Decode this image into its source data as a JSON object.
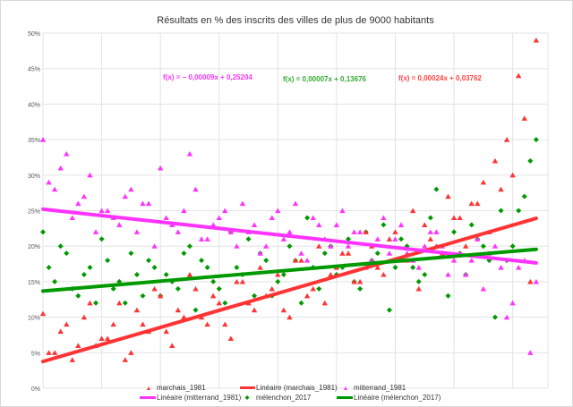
{
  "chart_data": {
    "type": "scatter",
    "title": "Résultats en % des inscrits des villes de plus de 9000 habitants",
    "xlabel": "",
    "ylabel": "",
    "xlim": [
      0,
      860
    ],
    "ylim": [
      0,
      50
    ],
    "y_ticks": [
      "0%",
      "5%",
      "10%",
      "15%",
      "20%",
      "25%",
      "30%",
      "35%",
      "40%",
      "45%",
      "50%"
    ],
    "grid": true,
    "legend_position": "bottom",
    "series": [
      {
        "name": "marchais_1981",
        "color": "#ff3333",
        "marker": "triangle",
        "points": [
          [
            0,
            10.5
          ],
          [
            20,
            5
          ],
          [
            40,
            9
          ],
          [
            60,
            6
          ],
          [
            80,
            12
          ],
          [
            100,
            7
          ],
          [
            120,
            9
          ],
          [
            140,
            4
          ],
          [
            160,
            11
          ],
          [
            180,
            8
          ],
          [
            200,
            13
          ],
          [
            220,
            6
          ],
          [
            240,
            10
          ],
          [
            260,
            14
          ],
          [
            280,
            9
          ],
          [
            300,
            12
          ],
          [
            320,
            7
          ],
          [
            340,
            15
          ],
          [
            360,
            11
          ],
          [
            380,
            13
          ],
          [
            400,
            16
          ],
          [
            420,
            10
          ],
          [
            440,
            18
          ],
          [
            460,
            14
          ],
          [
            480,
            12
          ],
          [
            500,
            17
          ],
          [
            520,
            19
          ],
          [
            540,
            15
          ],
          [
            560,
            20
          ],
          [
            580,
            16
          ],
          [
            600,
            22
          ],
          [
            620,
            18
          ],
          [
            640,
            14
          ],
          [
            660,
            21
          ],
          [
            680,
            19
          ],
          [
            700,
            24
          ],
          [
            720,
            20
          ],
          [
            740,
            26
          ],
          [
            760,
            22
          ],
          [
            780,
            28
          ],
          [
            800,
            30
          ],
          [
            820,
            38
          ],
          [
            840,
            49
          ],
          [
            10,
            5
          ],
          [
            30,
            8
          ],
          [
            50,
            4
          ],
          [
            70,
            10
          ],
          [
            90,
            6
          ],
          [
            110,
            7
          ],
          [
            130,
            12
          ],
          [
            150,
            5
          ],
          [
            170,
            9
          ],
          [
            190,
            14
          ],
          [
            210,
            8
          ],
          [
            230,
            11
          ],
          [
            250,
            16
          ],
          [
            270,
            10
          ],
          [
            290,
            13
          ],
          [
            310,
            9
          ],
          [
            330,
            15
          ],
          [
            350,
            12
          ],
          [
            370,
            17
          ],
          [
            390,
            14
          ],
          [
            410,
            11
          ],
          [
            430,
            18
          ],
          [
            450,
            13
          ],
          [
            470,
            20
          ],
          [
            490,
            16
          ],
          [
            510,
            19
          ],
          [
            530,
            15
          ],
          [
            550,
            22
          ],
          [
            570,
            17
          ],
          [
            590,
            21
          ],
          [
            610,
            18
          ],
          [
            630,
            25
          ],
          [
            650,
            23
          ],
          [
            670,
            20
          ],
          [
            690,
            27
          ],
          [
            710,
            24
          ],
          [
            730,
            26
          ],
          [
            750,
            29
          ],
          [
            770,
            32
          ],
          [
            790,
            35
          ],
          [
            810,
            44
          ],
          [
            830,
            15
          ]
        ]
      },
      {
        "name": "mitterrand_1981",
        "color": "#ff33ff",
        "marker": "triangle",
        "points": [
          [
            0,
            35
          ],
          [
            20,
            28
          ],
          [
            40,
            33
          ],
          [
            60,
            26
          ],
          [
            80,
            30
          ],
          [
            100,
            25
          ],
          [
            120,
            24
          ],
          [
            140,
            27
          ],
          [
            160,
            22
          ],
          [
            180,
            26
          ],
          [
            200,
            31
          ],
          [
            220,
            23
          ],
          [
            240,
            25
          ],
          [
            260,
            28
          ],
          [
            280,
            21
          ],
          [
            300,
            24
          ],
          [
            320,
            22
          ],
          [
            340,
            26
          ],
          [
            360,
            23
          ],
          [
            380,
            20
          ],
          [
            400,
            25
          ],
          [
            420,
            22
          ],
          [
            440,
            19
          ],
          [
            460,
            24
          ],
          [
            480,
            21
          ],
          [
            500,
            23
          ],
          [
            520,
            20
          ],
          [
            540,
            22
          ],
          [
            560,
            18
          ],
          [
            580,
            24
          ],
          [
            600,
            21
          ],
          [
            620,
            19
          ],
          [
            640,
            17
          ],
          [
            660,
            22
          ],
          [
            680,
            20
          ],
          [
            700,
            18
          ],
          [
            720,
            16
          ],
          [
            740,
            21
          ],
          [
            760,
            19
          ],
          [
            780,
            17
          ],
          [
            800,
            12
          ],
          [
            820,
            18
          ],
          [
            840,
            15
          ],
          [
            10,
            29
          ],
          [
            30,
            31
          ],
          [
            50,
            24
          ],
          [
            70,
            27
          ],
          [
            90,
            22
          ],
          [
            110,
            25
          ],
          [
            130,
            23
          ],
          [
            150,
            28
          ],
          [
            170,
            26
          ],
          [
            190,
            20
          ],
          [
            210,
            24
          ],
          [
            230,
            22
          ],
          [
            250,
            33
          ],
          [
            270,
            21
          ],
          [
            290,
            23
          ],
          [
            310,
            25
          ],
          [
            330,
            20
          ],
          [
            350,
            22
          ],
          [
            370,
            19
          ],
          [
            390,
            24
          ],
          [
            410,
            21
          ],
          [
            430,
            26
          ],
          [
            450,
            18
          ],
          [
            470,
            23
          ],
          [
            490,
            20
          ],
          [
            510,
            25
          ],
          [
            530,
            22
          ],
          [
            550,
            17
          ],
          [
            570,
            21
          ],
          [
            590,
            19
          ],
          [
            610,
            23
          ],
          [
            630,
            18
          ],
          [
            650,
            20
          ],
          [
            670,
            22
          ],
          [
            690,
            16
          ],
          [
            710,
            19
          ],
          [
            730,
            18
          ],
          [
            750,
            14
          ],
          [
            770,
            20
          ],
          [
            790,
            10
          ],
          [
            810,
            17
          ],
          [
            830,
            5
          ]
        ]
      },
      {
        "name": "mélenchon_2017",
        "color": "#009900",
        "marker": "diamond",
        "points": [
          [
            0,
            22
          ],
          [
            20,
            15
          ],
          [
            40,
            19
          ],
          [
            60,
            13
          ],
          [
            80,
            17
          ],
          [
            100,
            21
          ],
          [
            120,
            14
          ],
          [
            140,
            12
          ],
          [
            160,
            16
          ],
          [
            180,
            18
          ],
          [
            200,
            13
          ],
          [
            220,
            15
          ],
          [
            240,
            19
          ],
          [
            260,
            11
          ],
          [
            280,
            17
          ],
          [
            300,
            14
          ],
          [
            320,
            22
          ],
          [
            340,
            16
          ],
          [
            360,
            13
          ],
          [
            380,
            18
          ],
          [
            400,
            15
          ],
          [
            420,
            20
          ],
          [
            440,
            12
          ],
          [
            460,
            17
          ],
          [
            480,
            19
          ],
          [
            500,
            16
          ],
          [
            520,
            21
          ],
          [
            540,
            14
          ],
          [
            560,
            18
          ],
          [
            580,
            23
          ],
          [
            600,
            17
          ],
          [
            620,
            20
          ],
          [
            640,
            15
          ],
          [
            660,
            24
          ],
          [
            680,
            19
          ],
          [
            700,
            22
          ],
          [
            720,
            16
          ],
          [
            740,
            21
          ],
          [
            760,
            18
          ],
          [
            780,
            25
          ],
          [
            800,
            20
          ],
          [
            820,
            27
          ],
          [
            840,
            35
          ],
          [
            10,
            17
          ],
          [
            30,
            20
          ],
          [
            50,
            14
          ],
          [
            70,
            16
          ],
          [
            90,
            12
          ],
          [
            110,
            18
          ],
          [
            130,
            15
          ],
          [
            150,
            19
          ],
          [
            170,
            13
          ],
          [
            190,
            17
          ],
          [
            210,
            16
          ],
          [
            230,
            14
          ],
          [
            250,
            20
          ],
          [
            270,
            18
          ],
          [
            290,
            15
          ],
          [
            310,
            12
          ],
          [
            330,
            17
          ],
          [
            350,
            21
          ],
          [
            370,
            19
          ],
          [
            390,
            13
          ],
          [
            410,
            16
          ],
          [
            430,
            18
          ],
          [
            450,
            24
          ],
          [
            470,
            14
          ],
          [
            490,
            20
          ],
          [
            510,
            17
          ],
          [
            530,
            15
          ],
          [
            550,
            22
          ],
          [
            570,
            19
          ],
          [
            590,
            11
          ],
          [
            610,
            21
          ],
          [
            630,
            17
          ],
          [
            650,
            16
          ],
          [
            670,
            28
          ],
          [
            690,
            13
          ],
          [
            710,
            19
          ],
          [
            730,
            23
          ],
          [
            750,
            20
          ],
          [
            770,
            10
          ],
          [
            790,
            18
          ],
          [
            810,
            25
          ],
          [
            830,
            32
          ]
        ]
      }
    ],
    "trendlines": [
      {
        "name": "Linéaire (marchais_1981)",
        "color": "#ff3333",
        "slope": 0.00024,
        "intercept": 0.03762,
        "equation": "f(x) = 0,00024x + 0,03762"
      },
      {
        "name": "Linéaire (mitterrand_1981)",
        "color": "#ff33ff",
        "slope": -9e-05,
        "intercept": 0.25204,
        "equation": "f(x) = − 0,00009x + 0,25204"
      },
      {
        "name": "Linéaire (mélenchon_2017)",
        "color": "#009900",
        "slope": 7e-05,
        "intercept": 0.13676,
        "equation": "f(x) = 0,00007x + 0,13676"
      }
    ]
  }
}
